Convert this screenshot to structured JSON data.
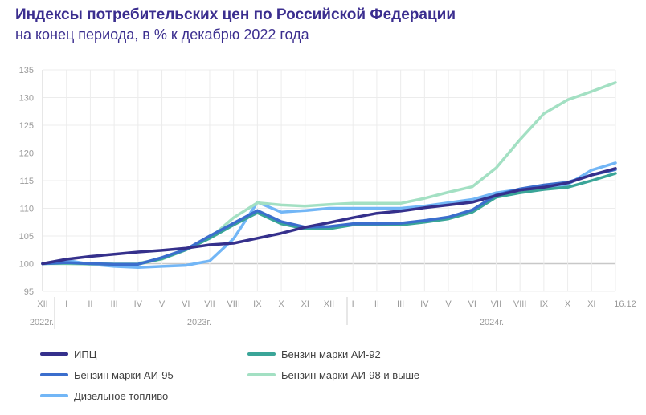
{
  "chart_data": {
    "type": "line",
    "title": "Индексы потребительских цен по Российской Федерации",
    "subtitle": "на конец периода, в % к декабрю 2022 года",
    "x": [
      "XII",
      "I",
      "II",
      "III",
      "IV",
      "V",
      "VI",
      "VII",
      "VIII",
      "IX",
      "X",
      "XI",
      "XII",
      "I",
      "II",
      "III",
      "IV",
      "V",
      "VI",
      "VII",
      "VIII",
      "IX",
      "X",
      "XI",
      "16.12"
    ],
    "year_labels": [
      "2022г.",
      "2023г.",
      "2024г."
    ],
    "yticks": [
      95,
      100,
      105,
      110,
      115,
      120,
      125,
      130,
      135
    ],
    "ylim": [
      95,
      135
    ],
    "grid": true,
    "legend_position": "bottom",
    "series": [
      {
        "name": "Дизельное топливо",
        "color": "#72b6f6",
        "values": [
          100,
          100.6,
          99.9,
          99.5,
          99.3,
          99.5,
          99.7,
          100.5,
          104.5,
          111.1,
          109.3,
          109.6,
          110.0,
          110.0,
          110.0,
          110.0,
          110.4,
          111.0,
          111.6,
          112.8,
          113.4,
          113.7,
          114.3,
          116.9,
          118.2
        ]
      },
      {
        "name": "Бензин марки АИ-98 и выше",
        "color": "#a3e0c3",
        "values": [
          100,
          100.0,
          99.9,
          100.0,
          100.1,
          100.8,
          102.5,
          104.6,
          108.3,
          111.0,
          110.6,
          110.4,
          110.7,
          110.9,
          110.9,
          110.9,
          111.8,
          112.9,
          113.9,
          117.3,
          122.4,
          127.1,
          129.6,
          131.1,
          132.7
        ]
      },
      {
        "name": "Бензин марки АИ-92",
        "color": "#3aa598",
        "values": [
          100,
          100.1,
          100.0,
          99.9,
          99.9,
          100.9,
          102.5,
          104.6,
          107.0,
          109.2,
          107.2,
          106.3,
          106.3,
          107.0,
          107.0,
          107.0,
          107.5,
          108.1,
          109.3,
          112.0,
          112.8,
          113.4,
          113.8,
          115.0,
          116.3
        ]
      },
      {
        "name": "Бензин марки АИ-95",
        "color": "#3b6ecd",
        "values": [
          100,
          100.2,
          100.0,
          99.9,
          99.9,
          101.1,
          102.6,
          105.0,
          107.3,
          109.6,
          107.6,
          106.6,
          106.7,
          107.2,
          107.2,
          107.3,
          107.8,
          108.4,
          109.7,
          112.4,
          113.5,
          114.2,
          114.7,
          116.0,
          117.0
        ]
      },
      {
        "name": "ИПЦ",
        "color": "#35308c",
        "values": [
          100,
          100.8,
          101.3,
          101.7,
          102.1,
          102.4,
          102.8,
          103.4,
          103.7,
          104.6,
          105.5,
          106.6,
          107.4,
          108.3,
          109.1,
          109.5,
          110.1,
          110.6,
          111.1,
          112.3,
          113.3,
          113.8,
          114.6,
          116.0,
          117.2
        ]
      }
    ],
    "legend": [
      "ИПЦ",
      "Бензин марки АИ-92",
      "Бензин марки АИ-95",
      "Бензин марки АИ-98 и выше",
      "Дизельное топливо"
    ]
  }
}
